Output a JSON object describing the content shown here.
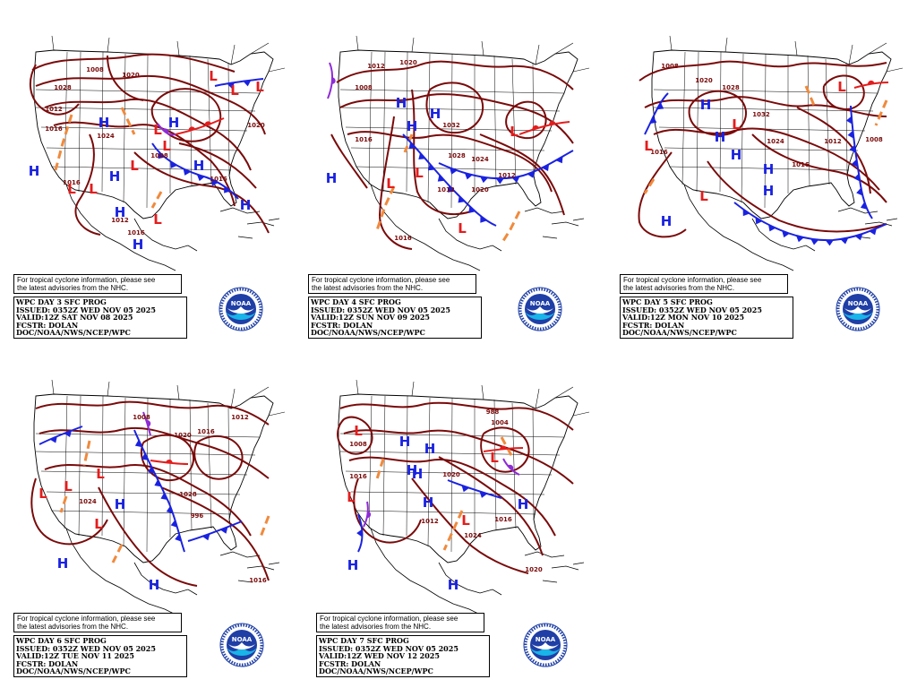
{
  "panels": [
    {
      "id": "day3",
      "tc_note": [
        "For tropical cyclone information, please see",
        "the latest advisories from the NHC."
      ],
      "info": [
        "WPC DAY 3 SFC PROG",
        "ISSUED: 0352Z WED NOV 05 2025",
        "VALID:12Z SAT NOV 08 2025",
        "FCSTR: DOLAN",
        "DOC/NOAA/NWS/NCEP/WPC"
      ],
      "isobar_labels": [
        "1008",
        "1020",
        "1028",
        "1012",
        "1016",
        "1024",
        "1008",
        "1016",
        "1012",
        "1016",
        "1016",
        "1020"
      ],
      "highs": 8,
      "lows": 9
    },
    {
      "id": "day4",
      "tc_note": [
        "For tropical cyclone information, please see",
        "the latest advisories from the NHC."
      ],
      "info": [
        "WPC DAY 4 SFC PROG",
        "ISSUED: 0352Z WED NOV 05 2025",
        "VALID:12Z SUN NOV 09 2025",
        "FCSTR: DOLAN",
        "DOC/NOAA/NWS/NCEP/WPC"
      ],
      "isobar_labels": [
        "1012",
        "1020",
        "1008",
        "1016",
        "1032",
        "1028",
        "1024",
        "1020",
        "1012",
        "1016",
        "1012"
      ],
      "highs": 4,
      "lows": 4
    },
    {
      "id": "day5",
      "tc_note": [
        "For tropical cyclone information, please see",
        "the latest advisories from the NHC."
      ],
      "info": [
        "WPC DAY 5 SFC PROG",
        "ISSUED: 0352Z WED NOV 05 2025",
        "VALID:12Z MON NOV 10 2025",
        "FCSTR: DOLAN",
        "DOC/NOAA/NWS/NCEP/WPC"
      ],
      "isobar_labels": [
        "1008",
        "1020",
        "1028",
        "1032",
        "1024",
        "1016",
        "1012",
        "1008",
        "1016"
      ],
      "highs": 6,
      "lows": 4
    },
    {
      "id": "day6",
      "tc_note": [
        "For tropical cyclone information, please see",
        "the latest advisories from the NHC."
      ],
      "info": [
        "WPC DAY 6 SFC PROG",
        "ISSUED: 0352Z WED NOV 05 2025",
        "VALID:12Z TUE NOV 11 2025",
        "FCSTR: DOLAN",
        "DOC/NOAA/NWS/NCEP/WPC"
      ],
      "isobar_labels": [
        "1008",
        "1020",
        "1016",
        "1024",
        "1028",
        "996",
        "1016",
        "1012"
      ],
      "highs": 3,
      "lows": 4
    },
    {
      "id": "day7",
      "tc_note": [
        "For tropical cyclone information, please see",
        "the latest advisories from the NHC."
      ],
      "info": [
        "WPC DAY 7 SFC PROG",
        "ISSUED: 0352Z WED NOV 05 2025",
        "VALID:12Z WED NOV 12 2025",
        "FCSTR: DOLAN",
        "DOC/NOAA/NWS/NCEP/WPC"
      ],
      "isobar_labels": [
        "988",
        "1004",
        "1008",
        "1016",
        "1020",
        "1012",
        "1024",
        "1016",
        "1020"
      ],
      "highs": 8,
      "lows": 4
    }
  ],
  "logo_text": "NOAA",
  "center_symbols": {
    "high": "H",
    "low": "L"
  },
  "colors": {
    "isobar": "#7a0a0a",
    "high": "#1a22e0",
    "low": "#e51c1c",
    "trough": "#f08a3c",
    "cold_front": "#1a22e0",
    "warm_front": "#e51c1c",
    "occluded_front": "#8e2bd6",
    "land": "#000000"
  }
}
